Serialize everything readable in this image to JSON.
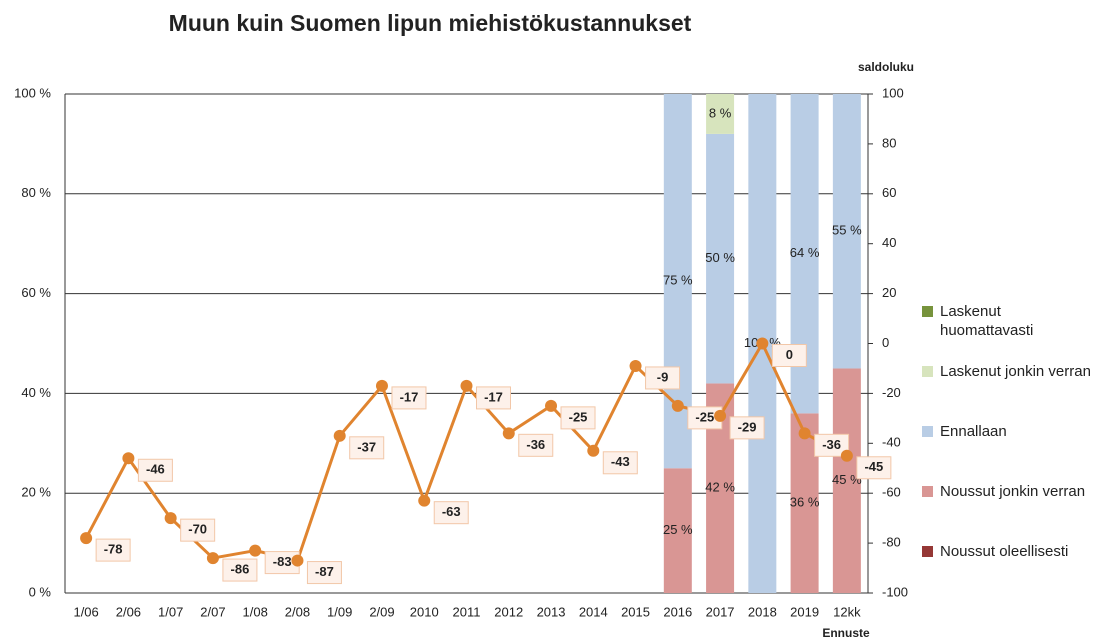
{
  "chart_data": {
    "type": "bar_line",
    "title": "Muun kuin Suomen lipun miehistökustannukset",
    "y2_label": "saldoluku",
    "annotation": "Ennuste",
    "categories": [
      "1/06",
      "2/06",
      "1/07",
      "2/07",
      "1/08",
      "2/08",
      "1/09",
      "2/09",
      "2010",
      "2011",
      "2012",
      "2013",
      "2014",
      "2015",
      "2016",
      "2017",
      "2018",
      "2019",
      "12kk"
    ],
    "ylim": [
      0,
      100
    ],
    "yticks": [
      {
        "value": 0,
        "label": "0 %"
      },
      {
        "value": 20,
        "label": "20 %"
      },
      {
        "value": 40,
        "label": "40 %"
      },
      {
        "value": 60,
        "label": "60 %"
      },
      {
        "value": 80,
        "label": "80 %"
      },
      {
        "value": 100,
        "label": "100 %"
      }
    ],
    "y2lim": [
      -100,
      100
    ],
    "y2ticks": [
      -100,
      -80,
      -60,
      -40,
      -20,
      0,
      20,
      40,
      60,
      80,
      100
    ],
    "grid": true,
    "legend": "right",
    "series": [
      {
        "name": "Laskenut huomattavasti",
        "color": "#77933c",
        "values": [
          null,
          null,
          null,
          null,
          null,
          null,
          null,
          null,
          null,
          null,
          null,
          null,
          null,
          null,
          null,
          null,
          null,
          null,
          null
        ]
      },
      {
        "name": "Laskenut jonkin verran",
        "color": "#d7e4bd",
        "values": [
          null,
          null,
          null,
          null,
          null,
          null,
          null,
          null,
          null,
          null,
          null,
          null,
          null,
          null,
          null,
          8,
          null,
          null,
          null
        ],
        "value_labels": [
          null,
          null,
          null,
          null,
          null,
          null,
          null,
          null,
          null,
          null,
          null,
          null,
          null,
          null,
          null,
          "8 %",
          null,
          null,
          null
        ]
      },
      {
        "name": "Ennallaan",
        "color": "#b9cde5",
        "values": [
          null,
          null,
          null,
          null,
          null,
          null,
          null,
          null,
          null,
          null,
          null,
          null,
          null,
          null,
          75,
          50,
          100,
          64,
          55
        ],
        "value_labels": [
          null,
          null,
          null,
          null,
          null,
          null,
          null,
          null,
          null,
          null,
          null,
          null,
          null,
          null,
          "75 %",
          "50 %",
          "100 %",
          "64 %",
          "55 %"
        ]
      },
      {
        "name": "Noussut jonkin verran",
        "color": "#d99694",
        "values": [
          null,
          null,
          null,
          null,
          null,
          null,
          null,
          null,
          null,
          null,
          null,
          null,
          null,
          null,
          25,
          42,
          null,
          36,
          45
        ],
        "value_labels": [
          null,
          null,
          null,
          null,
          null,
          null,
          null,
          null,
          null,
          null,
          null,
          null,
          null,
          null,
          "25 %",
          "42 %",
          null,
          "36 %",
          "45 %"
        ]
      },
      {
        "name": "Noussut oleellisesti",
        "color": "#953735",
        "values": [
          null,
          null,
          null,
          null,
          null,
          null,
          null,
          null,
          null,
          null,
          null,
          null,
          null,
          null,
          null,
          null,
          null,
          null,
          null
        ]
      }
    ],
    "line": {
      "axis": "y2",
      "color": "#e0842f",
      "values": [
        -78,
        -46,
        -70,
        -86,
        -83,
        -87,
        -37,
        -17,
        -63,
        -17,
        -36,
        -25,
        -43,
        -9,
        -25,
        -29,
        0,
        -36,
        -45
      ]
    }
  }
}
